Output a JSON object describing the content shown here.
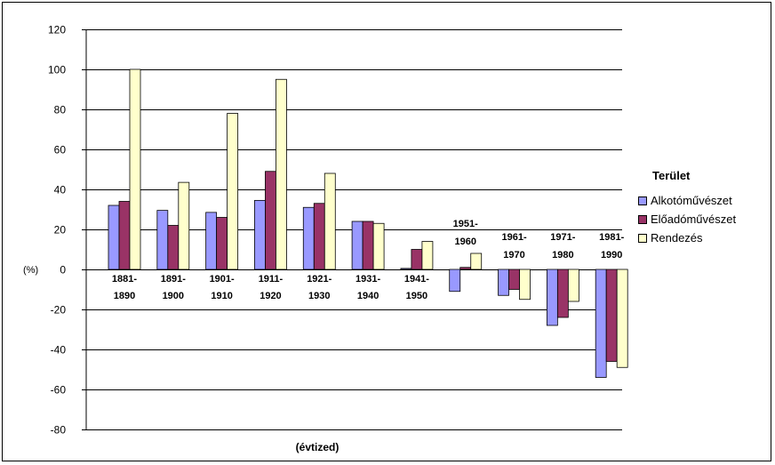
{
  "chart_data": {
    "type": "bar",
    "title": "",
    "xlabel": "(évtized)",
    "ylabel": "(%)",
    "ylim": [
      -80,
      120
    ],
    "yticks": [
      120,
      100,
      80,
      60,
      40,
      20,
      0,
      -20,
      -40,
      -60,
      -80
    ],
    "grid": true,
    "legend_position": "right",
    "legend_title": "Terület",
    "categories": [
      [
        "1881-",
        "1890"
      ],
      [
        "1891-",
        "1900"
      ],
      [
        "1901-",
        "1910"
      ],
      [
        "1911-",
        "1920"
      ],
      [
        "1921-",
        "1930"
      ],
      [
        "1931-",
        "1940"
      ],
      [
        "1941-",
        "1950"
      ],
      [
        "1951-",
        "1960"
      ],
      [
        "1961-",
        "1970"
      ],
      [
        "1971-",
        "1980"
      ],
      [
        "1981-",
        "1990"
      ]
    ],
    "series": [
      {
        "name": "Alkotóművészet",
        "color": "#9999ff",
        "values": [
          32,
          29.5,
          28.5,
          34.5,
          31,
          24,
          0.5,
          -11,
          -13,
          -28,
          -54
        ]
      },
      {
        "name": "Előadóművészet",
        "color": "#993366",
        "values": [
          34,
          22,
          26,
          49,
          33,
          24,
          10,
          1,
          -10,
          -24,
          -46
        ]
      },
      {
        "name": "Rendezés",
        "color": "#ffffcc",
        "values": [
          100,
          43.5,
          78,
          95,
          48,
          23,
          14,
          8,
          -15,
          -16,
          -49
        ]
      }
    ]
  }
}
